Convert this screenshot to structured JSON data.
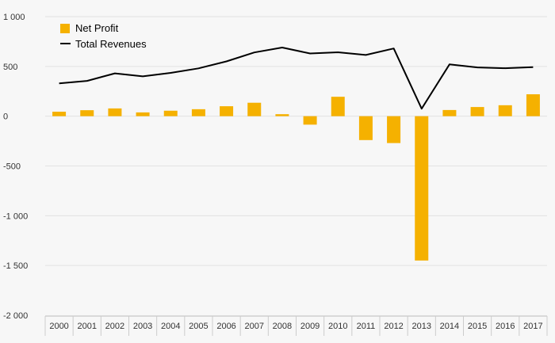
{
  "chart_data": {
    "type": "bar",
    "categories": [
      "2000",
      "2001",
      "2002",
      "2003",
      "2004",
      "2005",
      "2006",
      "2007",
      "2008",
      "2009",
      "2010",
      "2011",
      "2012",
      "2013",
      "2014",
      "2015",
      "2016",
      "2017"
    ],
    "series": [
      {
        "name": "Net Profit",
        "type": "bar",
        "color": "#f5b100",
        "values": [
          45,
          60,
          78,
          38,
          55,
          70,
          100,
          135,
          20,
          -85,
          195,
          -240,
          -270,
          -1450,
          62,
          92,
          110,
          220
        ]
      },
      {
        "name": "Total Revenues",
        "type": "line",
        "color": "#000000",
        "values": [
          330,
          355,
          430,
          400,
          435,
          480,
          550,
          640,
          690,
          630,
          642,
          615,
          680,
          75,
          520,
          490,
          482,
          493
        ]
      }
    ],
    "y_ticks": [
      {
        "value": 1000,
        "label": "1 000"
      },
      {
        "value": 500,
        "label": "500"
      },
      {
        "value": 0,
        "label": "0"
      },
      {
        "value": -500,
        "label": "-500"
      },
      {
        "value": -1000,
        "label": "-1 000"
      },
      {
        "value": -1500,
        "label": "-1 500"
      },
      {
        "value": -2000,
        "label": "-2 000"
      }
    ],
    "ylim": [
      -2000,
      1000
    ],
    "title": "",
    "xlabel": "",
    "ylabel": "",
    "grid": true,
    "legend_position": "top-left"
  }
}
